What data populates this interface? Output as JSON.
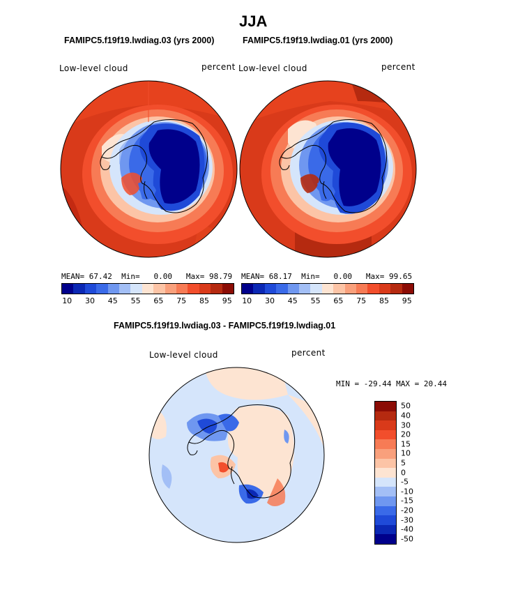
{
  "title": "JJA",
  "colors": {
    "abs_palette": [
      "#00008b",
      "#0b28b4",
      "#1f4ad8",
      "#3a6ae8",
      "#6f97f0",
      "#a3bff6",
      "#d5e5fb",
      "#fde4d2",
      "#fcc4a6",
      "#f9a07c",
      "#f77b55",
      "#f24e2c",
      "#d93a1a",
      "#b52a10",
      "#8b0c05"
    ],
    "diff_palette": [
      "#8b0c05",
      "#b52a10",
      "#d93a1a",
      "#f24e2c",
      "#f77b55",
      "#f9a07c",
      "#fcc4a6",
      "#fde4d2",
      "#d5e5fb",
      "#a3bff6",
      "#6f97f0",
      "#3a6ae8",
      "#1f4ad8",
      "#0b28b4",
      "#00008b"
    ]
  },
  "chart_data": [
    {
      "type": "heatmap",
      "title": "FAMIPC5.f19f19.lwdiag.03 (yrs 2000)",
      "variable": "Low-level cloud",
      "units": "percent",
      "projection": "south polar stereographic",
      "stats": {
        "mean_label": "MEAN=",
        "mean": "67.42",
        "min_label": "Min=",
        "min": "0.00",
        "max_label": "Max=",
        "max": "98.79"
      },
      "colorbar_levels": [
        "10",
        "30",
        "45",
        "55",
        "65",
        "75",
        "85",
        "95"
      ]
    },
    {
      "type": "heatmap",
      "title": "FAMIPC5.f19f19.lwdiag.01 (yrs 2000)",
      "variable": "Low-level cloud",
      "units": "percent",
      "projection": "south polar stereographic",
      "stats": {
        "mean_label": "MEAN=",
        "mean": "68.17",
        "min_label": "Min=",
        "min": "0.00",
        "max_label": "Max=",
        "max": "99.65"
      },
      "colorbar_levels": [
        "10",
        "30",
        "45",
        "55",
        "65",
        "75",
        "85",
        "95"
      ]
    },
    {
      "type": "heatmap",
      "title": "FAMIPC5.f19f19.lwdiag.03 - FAMIPC5.f19f19.lwdiag.01",
      "variable": "Low-level cloud",
      "units": "percent",
      "projection": "south polar stereographic",
      "stats_text": "MIN = -29.44 MAX =  20.44",
      "colorbar_levels": [
        "50",
        "40",
        "30",
        "20",
        "15",
        "10",
        "5",
        "0",
        "-5",
        "-10",
        "-15",
        "-20",
        "-30",
        "-40",
        "-50"
      ]
    }
  ]
}
